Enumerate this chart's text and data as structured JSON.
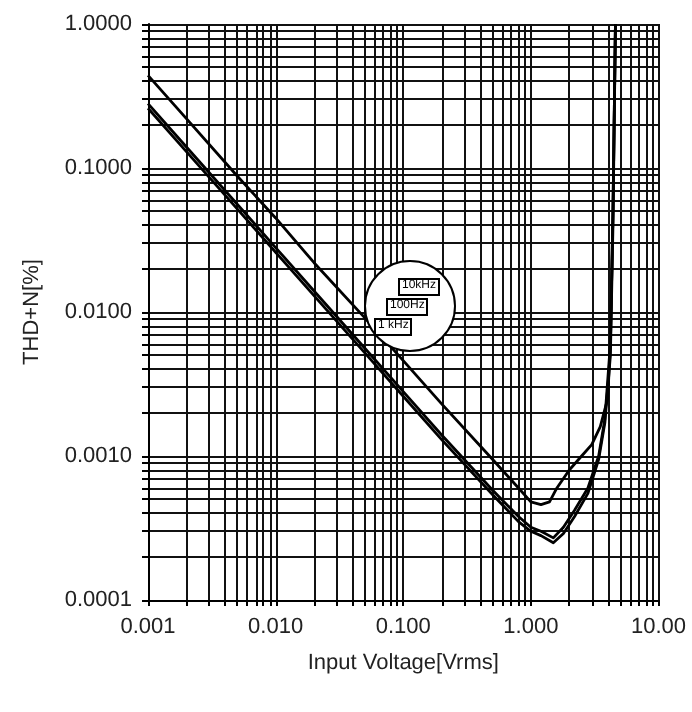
{
  "chart_data": {
    "type": "line",
    "xlabel": "Input Voltage[Vrms]",
    "ylabel": "THD+N[%]",
    "log": "xy",
    "grid": true,
    "legend": false,
    "marker": "none",
    "line_style": "solid",
    "xlim": [
      0.001,
      10
    ],
    "ylim": [
      0.0001,
      1
    ],
    "xticks": [
      {
        "value": 0.001,
        "label": "0.001"
      },
      {
        "value": 0.002,
        "label": null
      },
      {
        "value": 0.003,
        "label": null
      },
      {
        "value": 0.004,
        "label": null
      },
      {
        "value": 0.005,
        "label": null
      },
      {
        "value": 0.006,
        "label": null
      },
      {
        "value": 0.007,
        "label": null
      },
      {
        "value": 0.008,
        "label": null
      },
      {
        "value": 0.009,
        "label": null
      },
      {
        "value": 0.01,
        "label": "0.010"
      },
      {
        "value": 0.02,
        "label": null
      },
      {
        "value": 0.03,
        "label": null
      },
      {
        "value": 0.04,
        "label": null
      },
      {
        "value": 0.05,
        "label": null
      },
      {
        "value": 0.06,
        "label": null
      },
      {
        "value": 0.07,
        "label": null
      },
      {
        "value": 0.08,
        "label": null
      },
      {
        "value": 0.09,
        "label": null
      },
      {
        "value": 0.1,
        "label": "0.100"
      },
      {
        "value": 0.2,
        "label": null
      },
      {
        "value": 0.3,
        "label": null
      },
      {
        "value": 0.4,
        "label": null
      },
      {
        "value": 0.5,
        "label": null
      },
      {
        "value": 0.6,
        "label": null
      },
      {
        "value": 0.7,
        "label": null
      },
      {
        "value": 0.8,
        "label": null
      },
      {
        "value": 0.9,
        "label": null
      },
      {
        "value": 1,
        "label": "1.000"
      },
      {
        "value": 2,
        "label": null
      },
      {
        "value": 3,
        "label": null
      },
      {
        "value": 4,
        "label": null
      },
      {
        "value": 5,
        "label": null
      },
      {
        "value": 6,
        "label": null
      },
      {
        "value": 7,
        "label": null
      },
      {
        "value": 8,
        "label": null
      },
      {
        "value": 9,
        "label": null
      },
      {
        "value": 10,
        "label": "10.00"
      }
    ],
    "yticks": [
      {
        "value": 0.0001,
        "label": "0.0001"
      },
      {
        "value": 0.0002,
        "label": null
      },
      {
        "value": 0.0003,
        "label": null
      },
      {
        "value": 0.0004,
        "label": null
      },
      {
        "value": 0.0005,
        "label": null
      },
      {
        "value": 0.0006,
        "label": null
      },
      {
        "value": 0.0007,
        "label": null
      },
      {
        "value": 0.0008,
        "label": null
      },
      {
        "value": 0.0009,
        "label": null
      },
      {
        "value": 0.001,
        "label": "0.0010"
      },
      {
        "value": 0.002,
        "label": null
      },
      {
        "value": 0.003,
        "label": null
      },
      {
        "value": 0.004,
        "label": null
      },
      {
        "value": 0.005,
        "label": null
      },
      {
        "value": 0.006,
        "label": null
      },
      {
        "value": 0.007,
        "label": null
      },
      {
        "value": 0.008,
        "label": null
      },
      {
        "value": 0.009,
        "label": null
      },
      {
        "value": 0.01,
        "label": "0.0100"
      },
      {
        "value": 0.02,
        "label": null
      },
      {
        "value": 0.03,
        "label": null
      },
      {
        "value": 0.04,
        "label": null
      },
      {
        "value": 0.05,
        "label": null
      },
      {
        "value": 0.06,
        "label": null
      },
      {
        "value": 0.07,
        "label": null
      },
      {
        "value": 0.08,
        "label": null
      },
      {
        "value": 0.09,
        "label": null
      },
      {
        "value": 0.1,
        "label": "0.1000"
      },
      {
        "value": 0.2,
        "label": null
      },
      {
        "value": 0.3,
        "label": null
      },
      {
        "value": 0.4,
        "label": null
      },
      {
        "value": 0.5,
        "label": null
      },
      {
        "value": 0.6,
        "label": null
      },
      {
        "value": 0.7,
        "label": null
      },
      {
        "value": 0.8,
        "label": null
      },
      {
        "value": 0.9,
        "label": null
      },
      {
        "value": 1,
        "label": "1.0000"
      }
    ],
    "annotations": [
      "10kHz",
      "100Hz",
      "1 kHz"
    ],
    "series": [
      {
        "color": "#000000",
        "x": [
          0.001,
          0.002,
          0.005,
          0.01,
          0.02,
          0.05,
          0.1,
          0.2,
          0.5,
          0.8,
          1.0,
          1.2,
          1.4,
          1.6,
          2.0,
          2.5,
          3.0,
          3.5,
          4.0,
          4.2,
          4.4,
          4.6
        ],
        "values": [
          0.44,
          0.22,
          0.088,
          0.045,
          0.022,
          0.0091,
          0.0046,
          0.0023,
          0.00095,
          0.0006,
          0.00048,
          0.00046,
          0.00048,
          0.0006,
          0.0008,
          0.001,
          0.0012,
          0.0016,
          0.0025,
          0.006,
          0.05,
          1.0
        ]
      },
      {
        "color": "#000000",
        "x": [
          0.001,
          0.002,
          0.005,
          0.01,
          0.02,
          0.05,
          0.1,
          0.2,
          0.5,
          0.8,
          1.0,
          1.2,
          1.5,
          1.8,
          2.2,
          2.8,
          3.4,
          3.8,
          4.2,
          4.4,
          4.6
        ],
        "values": [
          0.28,
          0.14,
          0.056,
          0.028,
          0.014,
          0.0056,
          0.0028,
          0.0014,
          0.00058,
          0.00038,
          0.00032,
          0.0003,
          0.00027,
          0.00032,
          0.00042,
          0.0006,
          0.001,
          0.0018,
          0.006,
          0.05,
          1.0
        ]
      },
      {
        "color": "#000000",
        "x": [
          0.001,
          0.002,
          0.005,
          0.01,
          0.02,
          0.05,
          0.1,
          0.2,
          0.5,
          0.8,
          1.0,
          1.2,
          1.5,
          1.8,
          2.2,
          2.8,
          3.4,
          3.8,
          4.2,
          4.4,
          4.6
        ],
        "values": [
          0.26,
          0.13,
          0.052,
          0.026,
          0.013,
          0.0052,
          0.0026,
          0.0013,
          0.00054,
          0.00035,
          0.0003,
          0.00028,
          0.00025,
          0.00029,
          0.00038,
          0.00055,
          0.00095,
          0.0017,
          0.005,
          0.04,
          1.0
        ]
      }
    ]
  }
}
